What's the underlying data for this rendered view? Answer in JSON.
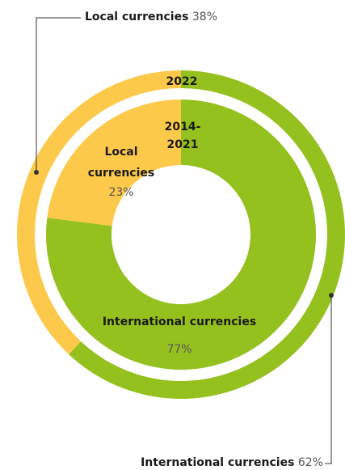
{
  "chart_data": {
    "type": "donut",
    "rings": [
      {
        "name": "2022",
        "categories": [
          "Local currencies",
          "International currencies"
        ],
        "values": [
          38,
          62
        ],
        "value_labels": [
          "38%",
          "62%"
        ],
        "colors": [
          "#fdc94a",
          "#95c11f"
        ]
      },
      {
        "name": "2014-2021",
        "categories": [
          "Local currencies",
          "International currencies"
        ],
        "values": [
          23,
          77
        ],
        "value_labels": [
          "23%",
          "77%"
        ],
        "colors": [
          "#fdc94a",
          "#95c11f"
        ]
      }
    ]
  }
}
